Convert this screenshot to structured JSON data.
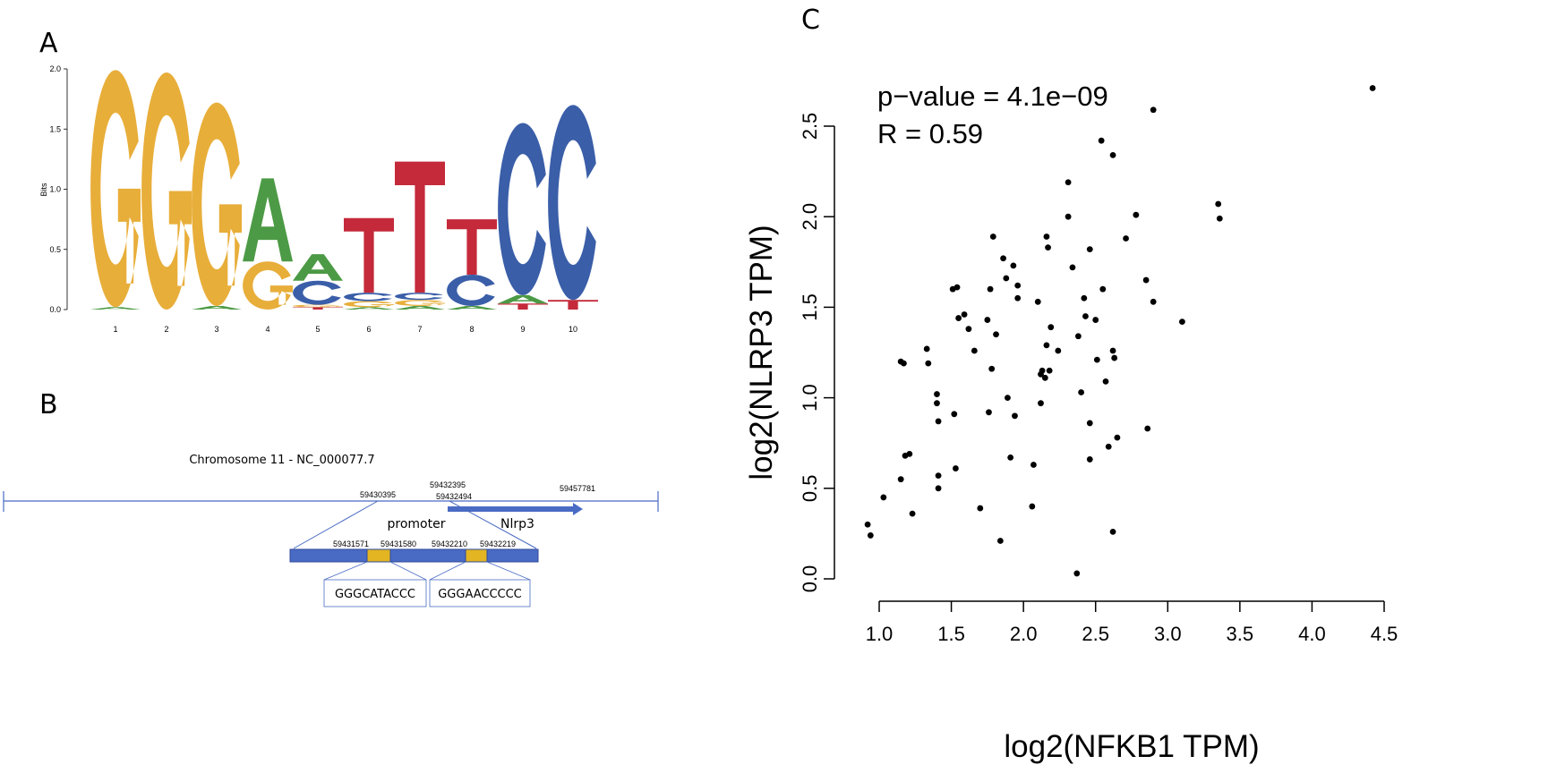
{
  "panels": {
    "a": "A",
    "b": "B",
    "c": "C"
  },
  "colors": {
    "A": "#4C9A45",
    "C": "#3A5EA8",
    "G": "#E8AE3A",
    "T": "#C42A3A",
    "diagram": "#4A6BC4",
    "site": "#E3B522"
  },
  "chart_data": [
    {
      "type": "sequence-logo",
      "ylabel": "Bits",
      "ylim": [
        0,
        2.0
      ],
      "yticks": [
        "0.0",
        "0.5",
        "1.0",
        "1.5",
        "2.0"
      ],
      "positions": [
        {
          "label": "1",
          "stack": [
            [
              "A",
              0.02
            ],
            [
              "G",
              1.97
            ]
          ]
        },
        {
          "label": "2",
          "stack": [
            [
              "G",
              1.97
            ]
          ]
        },
        {
          "label": "3",
          "stack": [
            [
              "A",
              0.03
            ],
            [
              "G",
              1.69
            ]
          ]
        },
        {
          "label": "4",
          "stack": [
            [
              "G",
              0.4
            ],
            [
              "A",
              0.69
            ]
          ]
        },
        {
          "label": "5",
          "stack": [
            [
              "T",
              0.02
            ],
            [
              "G",
              0.02
            ],
            [
              "C",
              0.2
            ],
            [
              "A",
              0.22
            ]
          ]
        },
        {
          "label": "6",
          "stack": [
            [
              "A",
              0.02
            ],
            [
              "G",
              0.05
            ],
            [
              "C",
              0.07
            ],
            [
              "T",
              0.62
            ]
          ]
        },
        {
          "label": "7",
          "stack": [
            [
              "A",
              0.03
            ],
            [
              "G",
              0.05
            ],
            [
              "C",
              0.06
            ],
            [
              "T",
              1.09
            ]
          ]
        },
        {
          "label": "8",
          "stack": [
            [
              "A",
              0.03
            ],
            [
              "C",
              0.26
            ],
            [
              "T",
              0.46
            ]
          ]
        },
        {
          "label": "9",
          "stack": [
            [
              "T",
              0.05
            ],
            [
              "A",
              0.07
            ],
            [
              "C",
              1.43
            ]
          ]
        },
        {
          "label": "10",
          "stack": [
            [
              "T",
              0.08
            ],
            [
              "C",
              1.62
            ]
          ]
        }
      ]
    },
    {
      "type": "scatter",
      "xlabel": "log2(NFKB1 TPM)",
      "ylabel": "log2(NLRP3 TPM)",
      "xlim": [
        1.0,
        4.5
      ],
      "ylim": [
        0.0,
        2.5
      ],
      "xticks": [
        "1.0",
        "1.5",
        "2.0",
        "2.5",
        "3.0",
        "3.5",
        "4.0",
        "4.5"
      ],
      "yticks": [
        "0.0",
        "0.5",
        "1.0",
        "1.5",
        "2.0",
        "2.5"
      ],
      "annotations": [
        "p−value = 4.1e−09",
        "R = 0.59"
      ],
      "points": [
        [
          0.92,
          0.3
        ],
        [
          0.94,
          0.24
        ],
        [
          1.03,
          0.45
        ],
        [
          1.15,
          0.55
        ],
        [
          1.18,
          0.68
        ],
        [
          1.21,
          0.69
        ],
        [
          1.15,
          1.2
        ],
        [
          1.17,
          1.19
        ],
        [
          1.23,
          0.36
        ],
        [
          1.33,
          1.27
        ],
        [
          1.34,
          1.19
        ],
        [
          1.4,
          1.02
        ],
        [
          1.4,
          0.97
        ],
        [
          1.41,
          0.87
        ],
        [
          1.41,
          0.57
        ],
        [
          1.41,
          0.5
        ],
        [
          1.52,
          0.91
        ],
        [
          1.53,
          0.61
        ],
        [
          1.51,
          1.6
        ],
        [
          1.54,
          1.61
        ],
        [
          1.55,
          1.44
        ],
        [
          1.59,
          1.46
        ],
        [
          1.62,
          1.38
        ],
        [
          1.66,
          1.26
        ],
        [
          1.7,
          0.39
        ],
        [
          1.75,
          1.43
        ],
        [
          1.76,
          0.92
        ],
        [
          1.77,
          1.6
        ],
        [
          1.78,
          1.16
        ],
        [
          1.79,
          1.89
        ],
        [
          1.81,
          1.35
        ],
        [
          1.84,
          0.21
        ],
        [
          1.86,
          1.77
        ],
        [
          1.88,
          1.66
        ],
        [
          1.89,
          1.0
        ],
        [
          1.91,
          0.67
        ],
        [
          1.93,
          1.73
        ],
        [
          1.94,
          0.9
        ],
        [
          1.96,
          1.62
        ],
        [
          1.96,
          1.55
        ],
        [
          2.06,
          0.4
        ],
        [
          2.07,
          0.63
        ],
        [
          2.1,
          1.53
        ],
        [
          2.12,
          0.97
        ],
        [
          2.12,
          1.13
        ],
        [
          2.13,
          1.15
        ],
        [
          2.15,
          1.11
        ],
        [
          2.16,
          1.89
        ],
        [
          2.17,
          1.83
        ],
        [
          2.18,
          1.15
        ],
        [
          2.19,
          1.39
        ],
        [
          2.16,
          1.29
        ],
        [
          2.24,
          1.26
        ],
        [
          2.31,
          2.19
        ],
        [
          2.31,
          2.0
        ],
        [
          2.34,
          1.72
        ],
        [
          2.38,
          1.34
        ],
        [
          2.37,
          0.03
        ],
        [
          2.4,
          1.03
        ],
        [
          2.42,
          1.55
        ],
        [
          2.43,
          1.45
        ],
        [
          2.46,
          1.82
        ],
        [
          2.46,
          0.86
        ],
        [
          2.46,
          0.66
        ],
        [
          2.5,
          1.43
        ],
        [
          2.51,
          1.21
        ],
        [
          2.55,
          1.6
        ],
        [
          2.54,
          2.42
        ],
        [
          2.57,
          1.09
        ],
        [
          2.59,
          0.73
        ],
        [
          2.62,
          2.34
        ],
        [
          2.62,
          1.26
        ],
        [
          2.63,
          1.22
        ],
        [
          2.62,
          0.26
        ],
        [
          2.65,
          0.78
        ],
        [
          2.71,
          1.88
        ],
        [
          2.78,
          2.01
        ],
        [
          2.85,
          1.65
        ],
        [
          2.86,
          0.83
        ],
        [
          2.9,
          2.59
        ],
        [
          2.9,
          1.53
        ],
        [
          3.1,
          1.42
        ],
        [
          3.35,
          2.07
        ],
        [
          3.36,
          1.99
        ],
        [
          4.42,
          2.71
        ]
      ]
    }
  ],
  "diagram": {
    "title": "Chromosome 11 - NC_000077.7",
    "coord_promoter_start": "59430395",
    "coord_gene_start": "59432395",
    "coord_promoter_end": "59432494",
    "coord_gene_end": "59457781",
    "promoter_label": "promoter",
    "gene_label": "Nlrp3",
    "site1_start": "59431571",
    "site1_end": "59431580",
    "site2_start": "59432210",
    "site2_end": "59432219",
    "site1_seq": "GGGCATACCC",
    "site2_seq": "GGGAACCCCC"
  }
}
